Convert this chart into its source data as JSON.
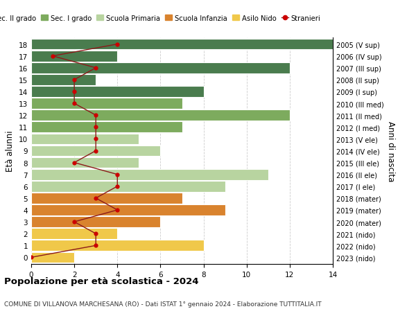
{
  "ages": [
    18,
    17,
    16,
    15,
    14,
    13,
    12,
    11,
    10,
    9,
    8,
    7,
    6,
    5,
    4,
    3,
    2,
    1,
    0
  ],
  "right_labels": [
    "2005 (V sup)",
    "2006 (IV sup)",
    "2007 (III sup)",
    "2008 (II sup)",
    "2009 (I sup)",
    "2010 (III med)",
    "2011 (II med)",
    "2012 (I med)",
    "2013 (V ele)",
    "2014 (IV ele)",
    "2015 (III ele)",
    "2016 (II ele)",
    "2017 (I ele)",
    "2018 (mater)",
    "2019 (mater)",
    "2020 (mater)",
    "2021 (nido)",
    "2022 (nido)",
    "2023 (nido)"
  ],
  "bar_values": [
    14,
    4,
    12,
    3,
    8,
    7,
    12,
    7,
    5,
    6,
    5,
    11,
    9,
    7,
    9,
    6,
    4,
    8,
    2
  ],
  "bar_colors": [
    "#4a7c4e",
    "#4a7c4e",
    "#4a7c4e",
    "#4a7c4e",
    "#4a7c4e",
    "#7dab5e",
    "#7dab5e",
    "#7dab5e",
    "#b8d4a0",
    "#b8d4a0",
    "#b8d4a0",
    "#b8d4a0",
    "#b8d4a0",
    "#d9832e",
    "#d9832e",
    "#d9832e",
    "#f0c84a",
    "#f0c84a",
    "#f0c84a"
  ],
  "stranieri_values": [
    4,
    1,
    3,
    2,
    2,
    2,
    3,
    3,
    3,
    3,
    2,
    4,
    4,
    3,
    4,
    2,
    3,
    3,
    0
  ],
  "legend_labels": [
    "Sec. II grado",
    "Sec. I grado",
    "Scuola Primaria",
    "Scuola Infanzia",
    "Asilo Nido",
    "Stranieri"
  ],
  "legend_colors": [
    "#4a7c4e",
    "#7dab5e",
    "#b8d4a0",
    "#d9832e",
    "#f0c84a",
    "#cc0000"
  ],
  "title": "Popolazione per età scolastica - 2024",
  "subtitle": "COMUNE DI VILLANOVA MARCHESANA (RO) - Dati ISTAT 1° gennaio 2024 - Elaborazione TUTTITALIA.IT",
  "ylabel_left": "Età alunni",
  "ylabel_right": "Anni di nascita",
  "xlim": [
    0,
    14
  ],
  "grid_color": "#cccccc",
  "bar_edge_color": "#ffffff",
  "stranieri_line_color": "#8b1a1a",
  "stranieri_dot_color": "#cc0000"
}
